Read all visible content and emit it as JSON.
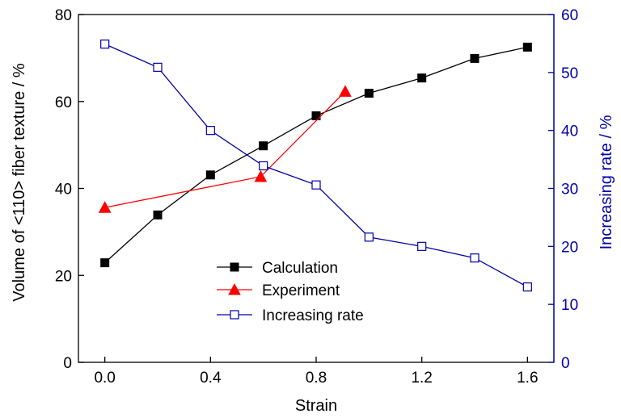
{
  "chart_data": {
    "type": "line",
    "xlabel": "Strain",
    "ylabel": "Volume of <110> fiber texture / %",
    "y2label": "Increasing rate / %",
    "xlim": [
      -0.1,
      1.7
    ],
    "ylim": [
      0,
      80
    ],
    "y2lim": [
      0,
      60
    ],
    "x_ticks": [
      0.0,
      0.4,
      0.8,
      1.2,
      1.6
    ],
    "x_tick_labels": [
      "0.0",
      "0.4",
      "0.8",
      "1.2",
      "1.6"
    ],
    "y_ticks": [
      0,
      20,
      40,
      60,
      80
    ],
    "y_tick_labels": [
      "0",
      "20",
      "40",
      "60",
      "80"
    ],
    "y2_ticks": [
      0,
      10,
      20,
      30,
      40,
      50,
      60
    ],
    "y2_tick_labels": [
      "0",
      "10",
      "20",
      "30",
      "40",
      "50",
      "60"
    ],
    "grid": false,
    "legend_position": "lower-center",
    "colors": {
      "left_axis": "#000000",
      "right_axis": "#0000aa"
    },
    "series": [
      {
        "name": "Calculation",
        "axis": "left",
        "color": "#000000",
        "marker": "filled-square",
        "x": [
          0.0,
          0.2,
          0.4,
          0.6,
          0.8,
          1.0,
          1.2,
          1.4,
          1.6
        ],
        "y": [
          22.9,
          33.9,
          43.1,
          49.8,
          56.7,
          61.9,
          65.4,
          69.9,
          72.5
        ]
      },
      {
        "name": "Experiment",
        "axis": "left",
        "color": "#ff0000",
        "marker": "filled-triangle",
        "x": [
          0.0,
          0.59,
          0.91
        ],
        "y": [
          35.6,
          42.7,
          62.3
        ]
      },
      {
        "name": "Increasing rate",
        "axis": "right",
        "color": "#0000aa",
        "marker": "open-square",
        "x": [
          0.0,
          0.2,
          0.4,
          0.6,
          0.8,
          1.0,
          1.2,
          1.4,
          1.6
        ],
        "y": [
          54.9,
          50.9,
          40.0,
          33.9,
          30.6,
          21.6,
          20.0,
          18.0,
          13.0
        ]
      }
    ]
  }
}
